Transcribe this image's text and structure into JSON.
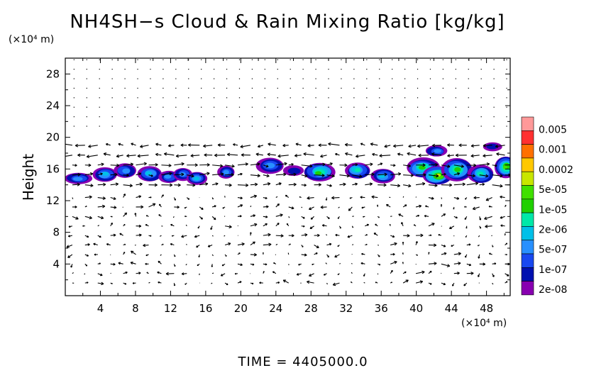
{
  "chart_data": {
    "type": "heatmap",
    "title": "NH4SH−s Cloud & Rain Mixing Ratio [kg/kg]",
    "x_unit": "(×10⁴ m)",
    "y_unit": "(×10⁴ m)",
    "ylabel": "Height",
    "xlim": [
      0,
      50.7
    ],
    "ylim": [
      0,
      30
    ],
    "x_ticks": [
      4,
      8,
      12,
      16,
      20,
      24,
      28,
      32,
      36,
      40,
      44,
      48
    ],
    "y_ticks": [
      4,
      8,
      12,
      16,
      20,
      24,
      28
    ],
    "x_tick_labels": [
      "4",
      "8",
      "12",
      "16",
      "20",
      "24",
      "28",
      "32",
      "36",
      "40",
      "44",
      "48"
    ],
    "y_tick_labels": [
      "4",
      "8",
      "12",
      "16",
      "20",
      "24",
      "28"
    ],
    "colorbar": {
      "labels": [
        "0.005",
        "0.001",
        "0.0002",
        "5e-05",
        "1e-05",
        "2e-06",
        "5e-07",
        "1e-07",
        "2e-08"
      ],
      "colors": [
        "#ff9999",
        "#ff3030",
        "#ff7000",
        "#ffc800",
        "#c8e600",
        "#40e000",
        "#20d000",
        "#00e8a8",
        "#00c0e8",
        "#2890ff",
        "#1848f0",
        "#0010b0",
        "#8800b0"
      ]
    },
    "cloud_blobs": [
      {
        "x": 1.5,
        "y": 14.8,
        "w": 2.2,
        "h": 0.9,
        "max_level": 3
      },
      {
        "x": 4.5,
        "y": 15.3,
        "w": 1.8,
        "h": 1.3,
        "max_level": 4
      },
      {
        "x": 6.8,
        "y": 15.8,
        "w": 1.6,
        "h": 1.3,
        "max_level": 3
      },
      {
        "x": 9.6,
        "y": 15.4,
        "w": 1.8,
        "h": 1.4,
        "max_level": 4
      },
      {
        "x": 11.8,
        "y": 15.0,
        "w": 1.4,
        "h": 1.0,
        "max_level": 3
      },
      {
        "x": 13.4,
        "y": 15.3,
        "w": 1.2,
        "h": 1.1,
        "max_level": 3
      },
      {
        "x": 15.0,
        "y": 14.8,
        "w": 1.4,
        "h": 1.1,
        "max_level": 4
      },
      {
        "x": 18.3,
        "y": 15.6,
        "w": 1.0,
        "h": 1.1,
        "max_level": 3
      },
      {
        "x": 23.3,
        "y": 16.4,
        "w": 2.2,
        "h": 1.5,
        "max_level": 3
      },
      {
        "x": 26.0,
        "y": 15.8,
        "w": 1.4,
        "h": 0.8,
        "max_level": 1
      },
      {
        "x": 29.0,
        "y": 15.6,
        "w": 2.6,
        "h": 1.8,
        "max_level": 6
      },
      {
        "x": 33.3,
        "y": 15.8,
        "w": 1.9,
        "h": 1.5,
        "max_level": 5
      },
      {
        "x": 36.2,
        "y": 15.1,
        "w": 1.8,
        "h": 1.3,
        "max_level": 4
      },
      {
        "x": 40.8,
        "y": 16.2,
        "w": 2.8,
        "h": 2.0,
        "max_level": 6
      },
      {
        "x": 42.4,
        "y": 15.2,
        "w": 2.4,
        "h": 1.8,
        "max_level": 8
      },
      {
        "x": 44.6,
        "y": 15.9,
        "w": 2.6,
        "h": 2.4,
        "max_level": 6
      },
      {
        "x": 47.3,
        "y": 15.4,
        "w": 2.0,
        "h": 1.8,
        "max_level": 5
      },
      {
        "x": 50.2,
        "y": 16.2,
        "w": 1.6,
        "h": 2.2,
        "max_level": 7
      },
      {
        "x": 48.7,
        "y": 18.8,
        "w": 1.2,
        "h": 0.6,
        "max_level": 1
      },
      {
        "x": 42.3,
        "y": 18.3,
        "w": 1.5,
        "h": 0.9,
        "max_level": 3
      }
    ],
    "wind_field": "velocity vectors drawn as arrows over the domain"
  },
  "footer": {
    "time_label": "TIME  =  4405000.0"
  }
}
